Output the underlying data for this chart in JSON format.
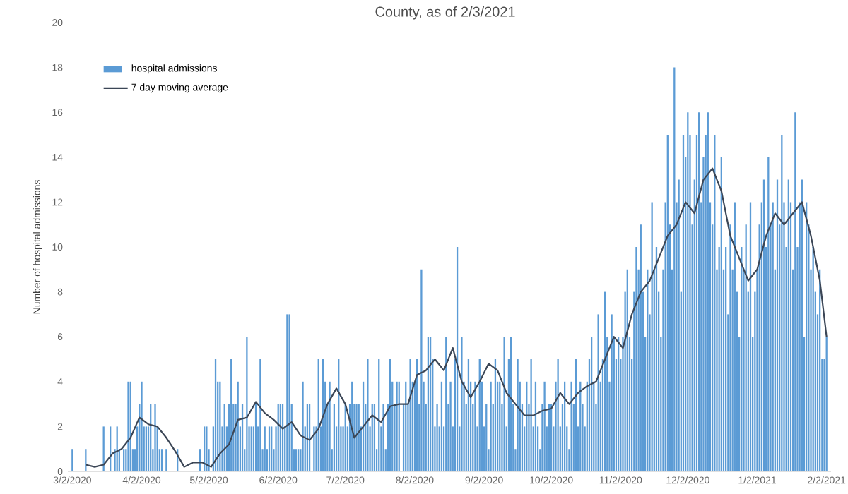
{
  "chart_data": {
    "type": "bar",
    "title": "County, as of 2/3/2021",
    "ylabel": "Number of hospital admissions",
    "x": [
      "2020-03-02",
      "2020-03-03",
      "2020-03-04",
      "2020-03-05",
      "2020-03-06",
      "2020-03-07",
      "2020-03-08",
      "2020-03-09",
      "2020-03-10",
      "2020-03-11",
      "2020-03-12",
      "2020-03-13",
      "2020-03-14",
      "2020-03-15",
      "2020-03-16",
      "2020-03-17",
      "2020-03-18",
      "2020-03-19",
      "2020-03-20",
      "2020-03-21",
      "2020-03-22",
      "2020-03-23",
      "2020-03-24",
      "2020-03-25",
      "2020-03-26",
      "2020-03-27",
      "2020-03-28",
      "2020-03-29",
      "2020-03-30",
      "2020-03-31",
      "2020-04-01",
      "2020-04-02",
      "2020-04-03",
      "2020-04-04",
      "2020-04-05",
      "2020-04-06",
      "2020-04-07",
      "2020-04-08",
      "2020-04-09",
      "2020-04-10",
      "2020-04-11",
      "2020-04-12",
      "2020-04-13",
      "2020-04-14",
      "2020-04-15",
      "2020-04-16",
      "2020-04-17",
      "2020-04-18",
      "2020-04-19",
      "2020-04-20",
      "2020-04-21",
      "2020-04-22",
      "2020-04-23",
      "2020-04-24",
      "2020-04-25",
      "2020-04-26",
      "2020-04-27",
      "2020-04-28",
      "2020-04-29",
      "2020-04-30",
      "2020-05-01",
      "2020-05-02",
      "2020-05-03",
      "2020-05-04",
      "2020-05-05",
      "2020-05-06",
      "2020-05-07",
      "2020-05-08",
      "2020-05-09",
      "2020-05-10",
      "2020-05-11",
      "2020-05-12",
      "2020-05-13",
      "2020-05-14",
      "2020-05-15",
      "2020-05-16",
      "2020-05-17",
      "2020-05-18",
      "2020-05-19",
      "2020-05-20",
      "2020-05-21",
      "2020-05-22",
      "2020-05-23",
      "2020-05-24",
      "2020-05-25",
      "2020-05-26",
      "2020-05-27",
      "2020-05-28",
      "2020-05-29",
      "2020-05-30",
      "2020-05-31",
      "2020-06-01",
      "2020-06-02",
      "2020-06-03",
      "2020-06-04",
      "2020-06-05",
      "2020-06-06",
      "2020-06-07",
      "2020-06-08",
      "2020-06-09",
      "2020-06-10",
      "2020-06-11",
      "2020-06-12",
      "2020-06-13",
      "2020-06-14",
      "2020-06-15",
      "2020-06-16",
      "2020-06-17",
      "2020-06-18",
      "2020-06-19",
      "2020-06-20",
      "2020-06-21",
      "2020-06-22",
      "2020-06-23",
      "2020-06-24",
      "2020-06-25",
      "2020-06-26",
      "2020-06-27",
      "2020-06-28",
      "2020-06-29",
      "2020-06-30",
      "2020-07-01",
      "2020-07-02",
      "2020-07-03",
      "2020-07-04",
      "2020-07-05",
      "2020-07-06",
      "2020-07-07",
      "2020-07-08",
      "2020-07-09",
      "2020-07-10",
      "2020-07-11",
      "2020-07-12",
      "2020-07-13",
      "2020-07-14",
      "2020-07-15",
      "2020-07-16",
      "2020-07-17",
      "2020-07-18",
      "2020-07-19",
      "2020-07-20",
      "2020-07-21",
      "2020-07-22",
      "2020-07-23",
      "2020-07-24",
      "2020-07-25",
      "2020-07-26",
      "2020-07-27",
      "2020-07-28",
      "2020-07-29",
      "2020-07-30",
      "2020-07-31",
      "2020-08-01",
      "2020-08-02",
      "2020-08-03",
      "2020-08-04",
      "2020-08-05",
      "2020-08-06",
      "2020-08-07",
      "2020-08-08",
      "2020-08-09",
      "2020-08-10",
      "2020-08-11",
      "2020-08-12",
      "2020-08-13",
      "2020-08-14",
      "2020-08-15",
      "2020-08-16",
      "2020-08-17",
      "2020-08-18",
      "2020-08-19",
      "2020-08-20",
      "2020-08-21",
      "2020-08-22",
      "2020-08-23",
      "2020-08-24",
      "2020-08-25",
      "2020-08-26",
      "2020-08-27",
      "2020-08-28",
      "2020-08-29",
      "2020-08-30",
      "2020-08-31",
      "2020-09-01",
      "2020-09-02",
      "2020-09-03",
      "2020-09-04",
      "2020-09-05",
      "2020-09-06",
      "2020-09-07",
      "2020-09-08",
      "2020-09-09",
      "2020-09-10",
      "2020-09-11",
      "2020-09-12",
      "2020-09-13",
      "2020-09-14",
      "2020-09-15",
      "2020-09-16",
      "2020-09-17",
      "2020-09-18",
      "2020-09-19",
      "2020-09-20",
      "2020-09-21",
      "2020-09-22",
      "2020-09-23",
      "2020-09-24",
      "2020-09-25",
      "2020-09-26",
      "2020-09-27",
      "2020-09-28",
      "2020-09-29",
      "2020-09-30",
      "2020-10-01",
      "2020-10-02",
      "2020-10-03",
      "2020-10-04",
      "2020-10-05",
      "2020-10-06",
      "2020-10-07",
      "2020-10-08",
      "2020-10-09",
      "2020-10-10",
      "2020-10-11",
      "2020-10-12",
      "2020-10-13",
      "2020-10-14",
      "2020-10-15",
      "2020-10-16",
      "2020-10-17",
      "2020-10-18",
      "2020-10-19",
      "2020-10-20",
      "2020-10-21",
      "2020-10-22",
      "2020-10-23",
      "2020-10-24",
      "2020-10-25",
      "2020-10-26",
      "2020-10-27",
      "2020-10-28",
      "2020-10-29",
      "2020-10-30",
      "2020-10-31",
      "2020-11-01",
      "2020-11-02",
      "2020-11-03",
      "2020-11-04",
      "2020-11-05",
      "2020-11-06",
      "2020-11-07",
      "2020-11-08",
      "2020-11-09",
      "2020-11-10",
      "2020-11-11",
      "2020-11-12",
      "2020-11-13",
      "2020-11-14",
      "2020-11-15",
      "2020-11-16",
      "2020-11-17",
      "2020-11-18",
      "2020-11-19",
      "2020-11-20",
      "2020-11-21",
      "2020-11-22",
      "2020-11-23",
      "2020-11-24",
      "2020-11-25",
      "2020-11-26",
      "2020-11-27",
      "2020-11-28",
      "2020-11-29",
      "2020-11-30",
      "2020-12-01",
      "2020-12-02",
      "2020-12-03",
      "2020-12-04",
      "2020-12-05",
      "2020-12-06",
      "2020-12-07",
      "2020-12-08",
      "2020-12-09",
      "2020-12-10",
      "2020-12-11",
      "2020-12-12",
      "2020-12-13",
      "2020-12-14",
      "2020-12-15",
      "2020-12-16",
      "2020-12-17",
      "2020-12-18",
      "2020-12-19",
      "2020-12-20",
      "2020-12-21",
      "2020-12-22",
      "2020-12-23",
      "2020-12-24",
      "2020-12-25",
      "2020-12-26",
      "2020-12-27",
      "2020-12-28",
      "2020-12-29",
      "2020-12-30",
      "2020-12-31",
      "2021-01-01",
      "2021-01-02",
      "2021-01-03",
      "2021-01-04",
      "2021-01-05",
      "2021-01-06",
      "2021-01-07",
      "2021-01-08",
      "2021-01-09",
      "2021-01-10",
      "2021-01-11",
      "2021-01-12",
      "2021-01-13",
      "2021-01-14",
      "2021-01-15",
      "2021-01-16",
      "2021-01-17",
      "2021-01-18",
      "2021-01-19",
      "2021-01-20",
      "2021-01-21",
      "2021-01-22",
      "2021-01-23",
      "2021-01-24",
      "2021-01-25",
      "2021-01-26",
      "2021-01-27",
      "2021-01-28",
      "2021-01-29",
      "2021-01-30",
      "2021-01-31",
      "2021-02-01",
      "2021-02-02"
    ],
    "series": [
      {
        "name": "hospital admissions",
        "color": "#5b9bd5",
        "values": [
          1,
          0,
          0,
          0,
          0,
          0,
          1,
          0,
          0,
          0,
          0,
          0,
          0,
          0,
          2,
          0,
          0,
          2,
          0,
          1,
          2,
          1,
          0,
          1,
          1,
          4,
          4,
          1,
          1,
          2,
          3,
          4,
          2,
          2,
          2,
          3,
          1,
          3,
          2,
          1,
          1,
          0,
          1,
          0,
          0,
          0,
          0,
          1,
          0,
          0,
          0,
          0,
          0,
          0,
          0,
          0,
          0,
          1,
          0,
          2,
          2,
          1,
          0,
          2,
          5,
          4,
          4,
          2,
          3,
          2,
          3,
          5,
          3,
          3,
          4,
          2,
          3,
          1,
          6,
          2,
          2,
          2,
          3,
          2,
          5,
          1,
          2,
          1,
          2,
          2,
          1,
          2,
          3,
          3,
          3,
          2,
          7,
          7,
          3,
          1,
          1,
          1,
          1,
          4,
          2,
          3,
          3,
          0,
          2,
          2,
          5,
          2,
          5,
          4,
          3,
          4,
          1,
          3,
          2,
          5,
          2,
          2,
          3,
          2,
          3,
          4,
          3,
          3,
          3,
          2,
          4,
          3,
          5,
          2,
          3,
          3,
          1,
          5,
          2,
          3,
          1,
          3,
          5,
          4,
          3,
          4,
          4,
          0,
          3,
          4,
          3,
          5,
          4,
          4,
          5,
          3,
          9,
          4,
          3,
          6,
          6,
          5,
          2,
          3,
          2,
          4,
          2,
          6,
          3,
          4,
          2,
          5,
          10,
          2,
          6,
          4,
          3,
          5,
          4,
          3,
          4,
          2,
          5,
          4,
          2,
          3,
          1,
          4,
          3,
          5,
          4,
          4,
          3,
          6,
          2,
          5,
          6,
          3,
          1,
          5,
          4,
          3,
          2,
          4,
          3,
          5,
          2,
          4,
          2,
          1,
          3,
          4,
          2,
          3,
          3,
          2,
          4,
          5,
          2,
          3,
          4,
          2,
          1,
          4,
          3,
          5,
          2,
          4,
          3,
          2,
          4,
          5,
          6,
          4,
          3,
          7,
          4,
          5,
          8,
          6,
          4,
          7,
          6,
          5,
          6,
          5,
          6,
          8,
          9,
          6,
          5,
          8,
          10,
          9,
          11,
          8,
          6,
          9,
          7,
          12,
          9,
          10,
          8,
          6,
          9,
          12,
          15,
          11,
          9,
          18,
          12,
          13,
          8,
          15,
          14,
          16,
          15,
          11,
          13,
          15,
          16,
          12,
          14,
          15,
          16,
          12,
          11,
          15,
          9,
          10,
          14,
          9,
          10,
          7,
          11,
          9,
          12,
          8,
          6,
          10,
          9,
          11,
          8,
          12,
          6,
          8,
          9,
          11,
          12,
          13,
          10,
          14,
          11,
          12,
          9,
          13,
          11,
          15,
          12,
          10,
          13,
          12,
          9,
          16,
          10,
          12,
          13,
          6,
          12,
          11,
          9,
          10,
          8,
          7,
          9,
          5,
          5,
          6
        ]
      },
      {
        "name": "7 day moving average",
        "type": "line",
        "color": "#3b4656",
        "x": [
          "2020-03-08",
          "2020-03-12",
          "2020-03-16",
          "2020-03-20",
          "2020-03-24",
          "2020-03-28",
          "2020-04-01",
          "2020-04-05",
          "2020-04-09",
          "2020-04-13",
          "2020-04-17",
          "2020-04-21",
          "2020-04-25",
          "2020-04-29",
          "2020-05-03",
          "2020-05-07",
          "2020-05-11",
          "2020-05-15",
          "2020-05-19",
          "2020-05-23",
          "2020-05-27",
          "2020-05-31",
          "2020-06-04",
          "2020-06-08",
          "2020-06-12",
          "2020-06-16",
          "2020-06-20",
          "2020-06-24",
          "2020-06-28",
          "2020-07-02",
          "2020-07-06",
          "2020-07-10",
          "2020-07-14",
          "2020-07-18",
          "2020-07-22",
          "2020-07-26",
          "2020-07-30",
          "2020-08-03",
          "2020-08-07",
          "2020-08-11",
          "2020-08-15",
          "2020-08-19",
          "2020-08-23",
          "2020-08-27",
          "2020-08-31",
          "2020-09-04",
          "2020-09-08",
          "2020-09-12",
          "2020-09-16",
          "2020-09-20",
          "2020-09-24",
          "2020-09-28",
          "2020-10-02",
          "2020-10-06",
          "2020-10-10",
          "2020-10-14",
          "2020-10-18",
          "2020-10-22",
          "2020-10-26",
          "2020-10-30",
          "2020-11-03",
          "2020-11-07",
          "2020-11-11",
          "2020-11-15",
          "2020-11-19",
          "2020-11-23",
          "2020-11-27",
          "2020-12-01",
          "2020-12-05",
          "2020-12-09",
          "2020-12-13",
          "2020-12-17",
          "2020-12-21",
          "2020-12-25",
          "2020-12-29",
          "2021-01-02",
          "2021-01-06",
          "2021-01-10",
          "2021-01-14",
          "2021-01-18",
          "2021-01-22",
          "2021-01-26",
          "2021-01-30",
          "2021-02-02"
        ],
        "values": [
          0.3,
          0.2,
          0.3,
          0.8,
          1.0,
          1.5,
          2.4,
          2.1,
          2.0,
          1.5,
          0.9,
          0.2,
          0.4,
          0.4,
          0.2,
          0.8,
          1.2,
          2.3,
          2.4,
          3.1,
          2.6,
          2.3,
          1.9,
          2.2,
          1.6,
          1.4,
          1.9,
          3.0,
          3.7,
          3.0,
          1.5,
          2.0,
          2.5,
          2.2,
          2.9,
          3.0,
          3.0,
          4.3,
          4.5,
          5.0,
          4.5,
          5.5,
          4.0,
          3.3,
          4.0,
          4.8,
          4.5,
          3.5,
          3.0,
          2.5,
          2.5,
          2.7,
          2.8,
          3.5,
          3.0,
          3.5,
          3.8,
          4.0,
          5.0,
          6.0,
          5.5,
          7.0,
          8.0,
          8.5,
          9.5,
          10.5,
          11.0,
          12.0,
          11.5,
          13.0,
          13.5,
          12.5,
          10.5,
          9.5,
          8.5,
          9.0,
          10.5,
          11.5,
          11.0,
          11.5,
          12.0,
          10.5,
          8.5,
          6.0
        ]
      }
    ],
    "xlim": [
      "2020-02-29",
      "2021-02-04"
    ],
    "xticks": [
      {
        "value": "2020-03-02",
        "label": "3/2/2020"
      },
      {
        "value": "2020-04-02",
        "label": "4/2/2020"
      },
      {
        "value": "2020-05-02",
        "label": "5/2/2020"
      },
      {
        "value": "2020-06-02",
        "label": "6/2/2020"
      },
      {
        "value": "2020-07-02",
        "label": "7/2/2020"
      },
      {
        "value": "2020-08-02",
        "label": "8/2/2020"
      },
      {
        "value": "2020-09-02",
        "label": "9/2/2020"
      },
      {
        "value": "2020-10-02",
        "label": "10/2/2020"
      },
      {
        "value": "2020-11-02",
        "label": "11/2/2020"
      },
      {
        "value": "2020-12-02",
        "label": "12/2/2020"
      },
      {
        "value": "2021-01-02",
        "label": "1/2/2021"
      },
      {
        "value": "2021-02-02",
        "label": "2/2/2021"
      }
    ],
    "ylim": [
      0,
      20
    ],
    "yticks": [
      0,
      2,
      4,
      6,
      8,
      10,
      12,
      14,
      16,
      18,
      20
    ],
    "grid": false,
    "legend": "top left",
    "marker": "none",
    "line_style": "solid"
  }
}
